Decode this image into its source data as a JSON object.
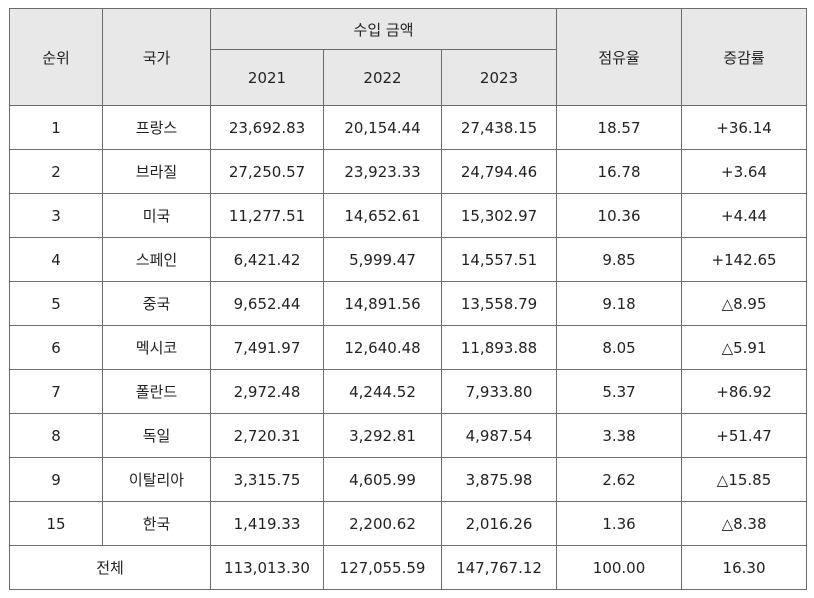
{
  "headers": {
    "rank": "순위",
    "country": "국가",
    "import_amount": "수입 금액",
    "years": [
      "2021",
      "2022",
      "2023"
    ],
    "share": "점유율",
    "growth": "증감률"
  },
  "rows": [
    {
      "rank": "1",
      "country": "프랑스",
      "v2021": "23,692.83",
      "v2022": "20,154.44",
      "v2023": "27,438.15",
      "share": "18.57",
      "growth": "+36.14"
    },
    {
      "rank": "2",
      "country": "브라질",
      "v2021": "27,250.57",
      "v2022": "23,923.33",
      "v2023": "24,794.46",
      "share": "16.78",
      "growth": "+3.64"
    },
    {
      "rank": "3",
      "country": "미국",
      "v2021": "11,277.51",
      "v2022": "14,652.61",
      "v2023": "15,302.97",
      "share": "10.36",
      "growth": "+4.44"
    },
    {
      "rank": "4",
      "country": "스페인",
      "v2021": "6,421.42",
      "v2022": "5,999.47",
      "v2023": "14,557.51",
      "share": "9.85",
      "growth": "+142.65"
    },
    {
      "rank": "5",
      "country": "중국",
      "v2021": "9,652.44",
      "v2022": "14,891.56",
      "v2023": "13,558.79",
      "share": "9.18",
      "growth": "△8.95"
    },
    {
      "rank": "6",
      "country": "멕시코",
      "v2021": "7,491.97",
      "v2022": "12,640.48",
      "v2023": "11,893.88",
      "share": "8.05",
      "growth": "△5.91"
    },
    {
      "rank": "7",
      "country": "폴란드",
      "v2021": "2,972.48",
      "v2022": "4,244.52",
      "v2023": "7,933.80",
      "share": "5.37",
      "growth": "+86.92"
    },
    {
      "rank": "8",
      "country": "독일",
      "v2021": "2,720.31",
      "v2022": "3,292.81",
      "v2023": "4,987.54",
      "share": "3.38",
      "growth": "+51.47"
    },
    {
      "rank": "9",
      "country": "이탈리아",
      "v2021": "3,315.75",
      "v2022": "4,605.99",
      "v2023": "3,875.98",
      "share": "2.62",
      "growth": "△15.85"
    },
    {
      "rank": "15",
      "country": "한국",
      "v2021": "1,419.33",
      "v2022": "2,200.62",
      "v2023": "2,016.26",
      "share": "1.36",
      "growth": "△8.38"
    }
  ],
  "total": {
    "label": "전체",
    "v2021": "113,013.30",
    "v2022": "127,055.59",
    "v2023": "147,767.12",
    "share": "100.00",
    "growth": "16.30"
  },
  "colors": {
    "header_background": "#e8e8e8",
    "border": "#6b6b6b",
    "text": "#222222"
  }
}
